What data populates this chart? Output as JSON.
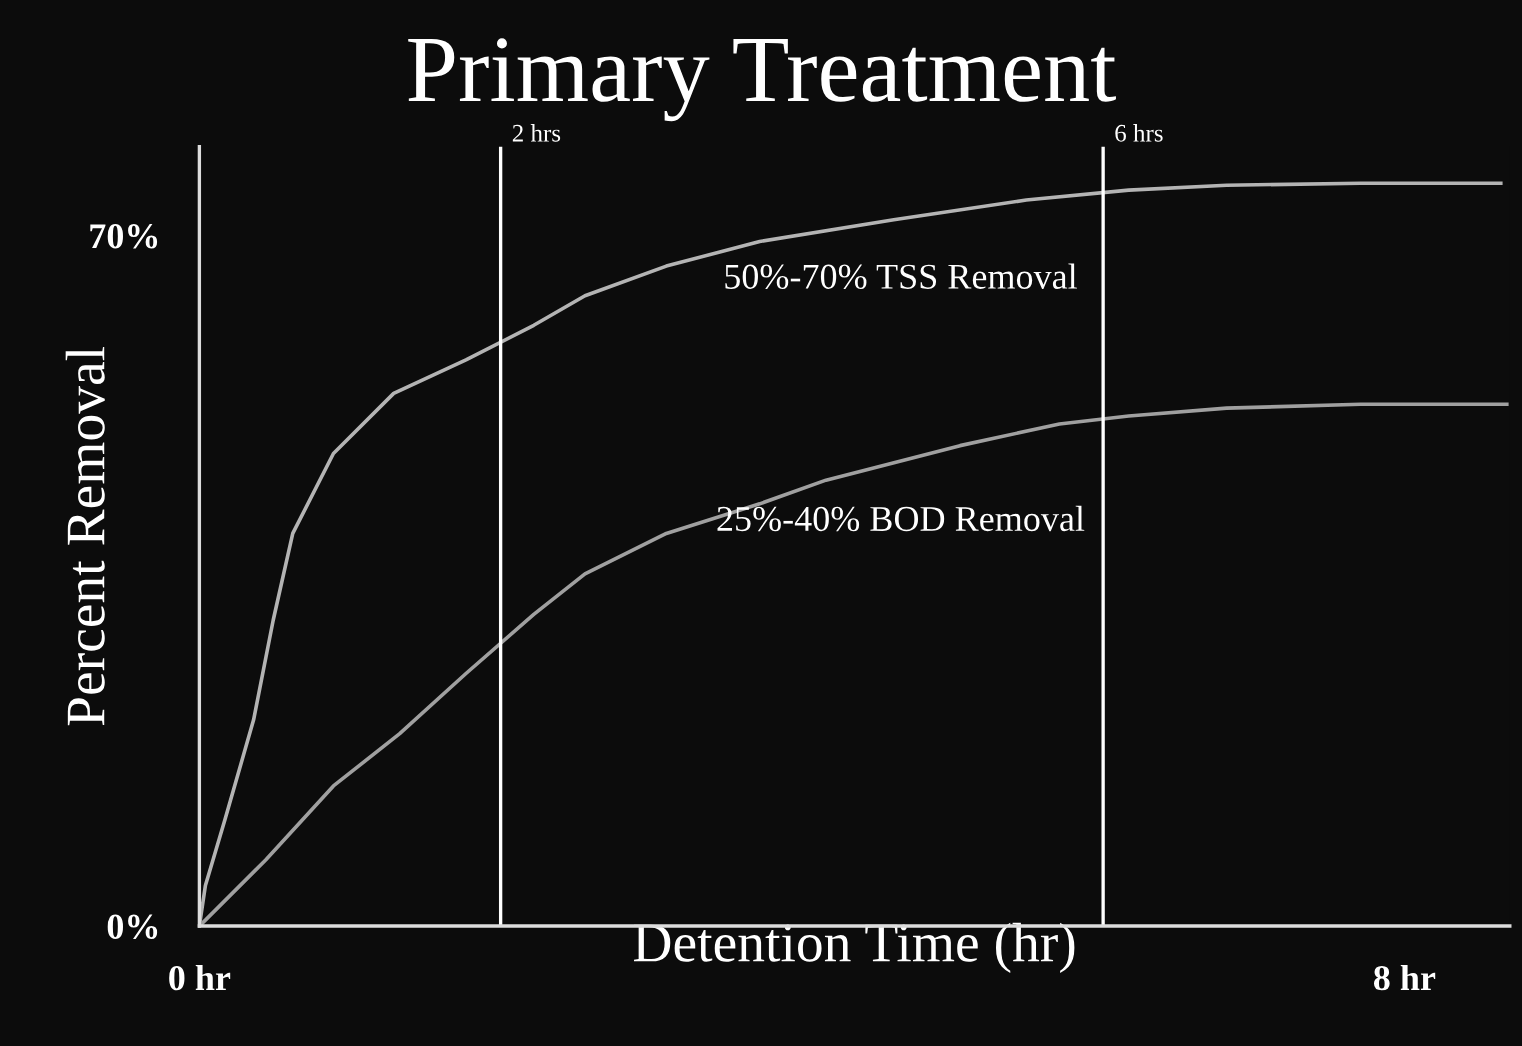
{
  "chart_data": {
    "type": "line",
    "title": "Primary Treatment",
    "xlabel": "Detention Time (hr)",
    "ylabel": "Percent Removal",
    "xlim": [
      0,
      8.7
    ],
    "xticks": [
      {
        "value": 0,
        "label": "0 hr"
      },
      {
        "value": 8,
        "label": "8 hr"
      }
    ],
    "ylim": [
      0,
      79
    ],
    "yticks": [
      {
        "value": 0,
        "label": "0%"
      },
      {
        "value": 70,
        "label": "70%"
      }
    ],
    "grid": false,
    "legend": false,
    "marker": "none",
    "line_style": "solid",
    "series": [
      {
        "name": "50%-70% TSS Removal",
        "color": "#b4b4b4",
        "x": [
          0,
          0.04,
          0.17,
          0.36,
          0.49,
          0.62,
          0.89,
          1.29,
          1.77,
          2.22,
          2.56,
          3.1,
          3.72,
          4.61,
          5.49,
          6.17,
          6.82,
          7.71,
          8.64
        ],
        "values": [
          0,
          4.1,
          10.8,
          20.9,
          31.0,
          39.8,
          47.9,
          54.0,
          57.4,
          60.9,
          63.9,
          66.9,
          69.4,
          71.6,
          73.6,
          74.6,
          75.1,
          75.3,
          75.3
        ]
      },
      {
        "name": "25%-40% BOD Removal",
        "color": "#a0a0a0",
        "x": [
          0,
          0.04,
          0.44,
          0.89,
          1.33,
          1.77,
          2.22,
          2.56,
          3.1,
          3.72,
          4.16,
          5.05,
          5.71,
          6.17,
          6.82,
          7.71,
          8.68
        ],
        "values": [
          0,
          0.6,
          6.7,
          14.2,
          19.5,
          25.6,
          31.6,
          35.7,
          39.8,
          42.8,
          45.2,
          48.7,
          50.9,
          51.7,
          52.5,
          52.9,
          52.9
        ]
      }
    ],
    "ref_lines": [
      {
        "axis": "x",
        "value": 2,
        "label": "2 hrs",
        "color": "#ffffff"
      },
      {
        "axis": "x",
        "value": 6,
        "label": "6 hrs",
        "color": "#ffffff"
      }
    ]
  }
}
